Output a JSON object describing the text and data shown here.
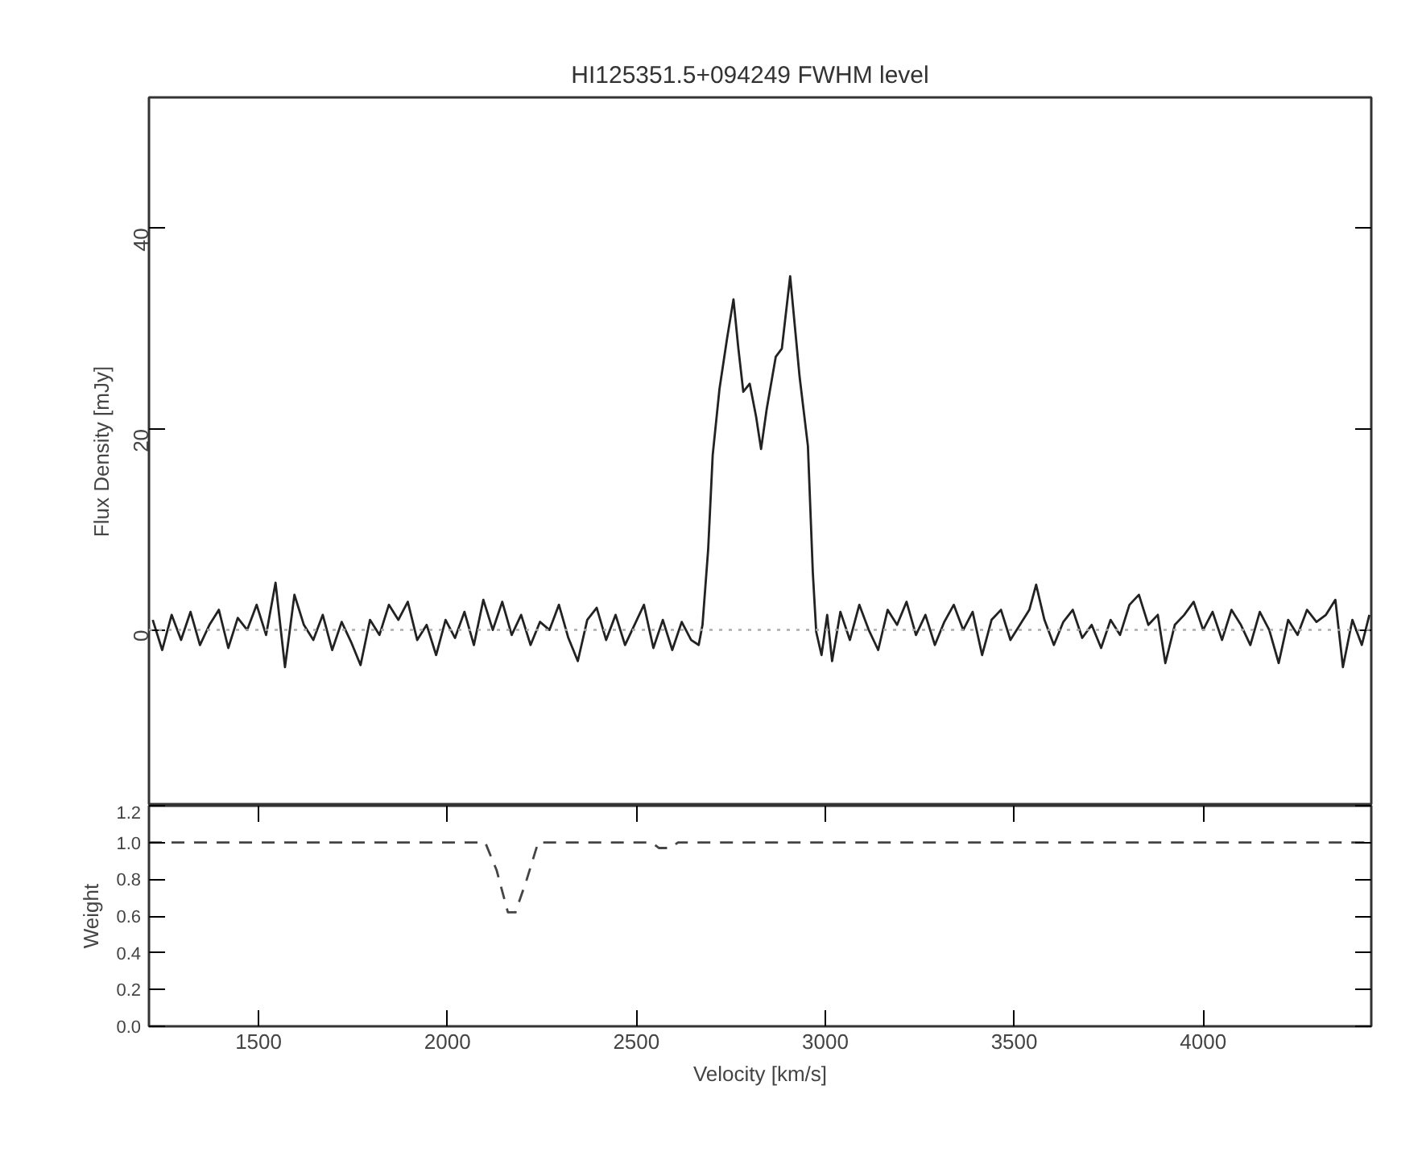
{
  "chart_data": [
    {
      "type": "line",
      "title": "HI125351.5+094249    FWHM level",
      "ylabel": "Flux Density [mJy]",
      "xlim": [
        1210,
        4445
      ],
      "ylim": [
        -17.5,
        53
      ],
      "yticks": [
        0,
        20,
        40
      ],
      "tick_labels": "y",
      "grid": false,
      "line_style": "solid",
      "ref_lines": [
        {
          "axis": "y",
          "value": 0,
          "label": null,
          "color": "#aaaaaa",
          "line_style": "dotted"
        }
      ],
      "series": [
        {
          "color": "#222222",
          "x": [
            1220,
            1245,
            1270,
            1295,
            1320,
            1345,
            1370,
            1395,
            1420,
            1445,
            1470,
            1495,
            1520,
            1545,
            1570,
            1595,
            1620,
            1645,
            1670,
            1695,
            1720,
            1745,
            1770,
            1795,
            1820,
            1845,
            1870,
            1895,
            1920,
            1945,
            1970,
            1995,
            2020,
            2045,
            2070,
            2095,
            2120,
            2145,
            2170,
            2195,
            2220,
            2245,
            2270,
            2295,
            2320,
            2345,
            2370,
            2395,
            2420,
            2445,
            2470,
            2495,
            2520,
            2545,
            2570,
            2595,
            2620,
            2645,
            2665,
            2675,
            2690,
            2702,
            2720,
            2740,
            2757,
            2770,
            2783,
            2800,
            2817,
            2830,
            2845,
            2869,
            2885,
            2907,
            2920,
            2932,
            2954,
            2967,
            2976,
            2990,
            3005,
            3018,
            3040,
            3065,
            3090,
            3115,
            3140,
            3165,
            3190,
            3215,
            3240,
            3265,
            3290,
            3315,
            3340,
            3365,
            3390,
            3415,
            3440,
            3465,
            3490,
            3515,
            3540,
            3558,
            3580,
            3605,
            3630,
            3655,
            3680,
            3705,
            3730,
            3755,
            3780,
            3805,
            3830,
            3855,
            3880,
            3900,
            3925,
            3950,
            3975,
            4000,
            4025,
            4050,
            4075,
            4100,
            4125,
            4150,
            4175,
            4200,
            4225,
            4250,
            4275,
            4300,
            4325,
            4350,
            4370,
            4395,
            4420,
            4440
          ],
          "values": [
            1.0,
            -2.0,
            1.5,
            -1.0,
            1.8,
            -1.5,
            0.5,
            2.0,
            -1.8,
            1.2,
            0.0,
            2.5,
            -0.5,
            4.7,
            -3.7,
            3.5,
            0.5,
            -1.0,
            1.5,
            -2.0,
            0.8,
            -1.2,
            -3.5,
            1.0,
            -0.5,
            2.5,
            1.0,
            2.8,
            -1.0,
            0.5,
            -2.5,
            1.0,
            -0.8,
            1.8,
            -1.5,
            3.0,
            0.0,
            2.8,
            -0.5,
            1.5,
            -1.5,
            0.8,
            0.0,
            2.5,
            -0.8,
            -3.1,
            1.0,
            2.2,
            -1.0,
            1.5,
            -1.5,
            0.5,
            2.5,
            -1.8,
            1.0,
            -2.0,
            0.8,
            -1.0,
            -1.5,
            0.5,
            8,
            17.4,
            24,
            29,
            32.9,
            28,
            23.7,
            24.5,
            21.2,
            18,
            22,
            27.2,
            28,
            35.2,
            30,
            25.2,
            18.3,
            5.7,
            -0.2,
            -2.5,
            1.5,
            -3.1,
            1.8,
            -1.0,
            2.5,
            0.0,
            -2.0,
            2.0,
            0.5,
            2.8,
            -0.5,
            1.5,
            -1.5,
            0.8,
            2.5,
            0.0,
            1.8,
            -2.5,
            1.0,
            2.0,
            -1.0,
            0.5,
            2.0,
            4.5,
            1.0,
            -1.5,
            0.8,
            2.0,
            -0.8,
            0.5,
            -1.8,
            1.0,
            -0.5,
            2.5,
            3.5,
            0.5,
            1.5,
            -3.3,
            0.5,
            1.5,
            2.8,
            0.0,
            1.8,
            -1.0,
            2.0,
            0.5,
            -1.5,
            1.8,
            0.0,
            -3.3,
            1.0,
            -0.5,
            2.0,
            0.8,
            1.5,
            3.0,
            -3.7,
            1.0,
            -1.5,
            1.5
          ]
        }
      ]
    },
    {
      "type": "line",
      "xlabel": "Velocity [km/s]",
      "ylabel": "Weight",
      "xlim": [
        1210,
        4445
      ],
      "xticks": [
        1500,
        2000,
        2500,
        3000,
        3500,
        4000
      ],
      "ylim": [
        0,
        1.2
      ],
      "yticks": [
        {
          "value": 0,
          "label": "0.0"
        },
        {
          "value": 0.2,
          "label": "0.2"
        },
        {
          "value": 0.4,
          "label": "0.4"
        },
        {
          "value": 0.6,
          "label": "0.6"
        },
        {
          "value": 0.8,
          "label": "0.8"
        },
        {
          "value": 1.0,
          "label": "1.0"
        },
        {
          "value": 1.2,
          "label": "1.2"
        }
      ],
      "grid": false,
      "line_style": "dashed",
      "series": [
        {
          "color": "#444444",
          "x": [
            1210,
            2100,
            2130,
            2160,
            2180,
            2210,
            2240,
            2540,
            2560,
            2590,
            2610,
            4445
          ],
          "values": [
            1.0,
            1.0,
            0.85,
            0.62,
            0.62,
            0.8,
            1.0,
            1.0,
            0.97,
            0.97,
            1.0,
            1.0
          ]
        }
      ]
    }
  ]
}
